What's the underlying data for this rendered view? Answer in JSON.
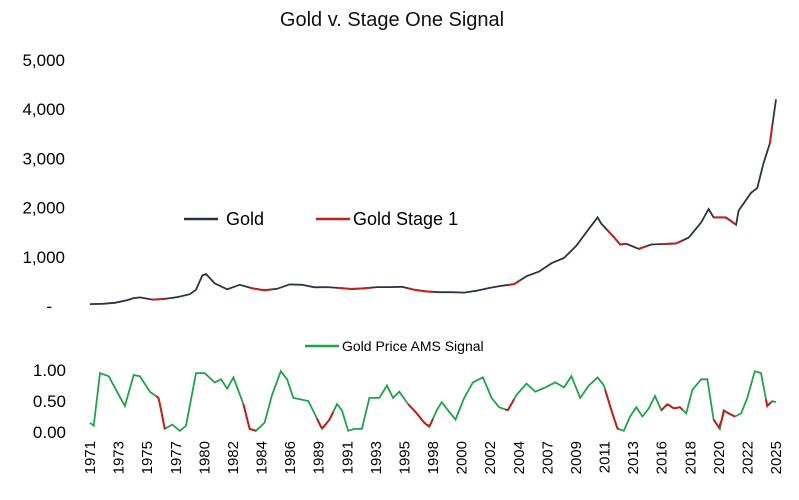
{
  "chart_data": [
    {
      "type": "line",
      "title": "Gold v. Stage One Signal",
      "ylim": [
        0,
        5000
      ],
      "y_ticks": [
        {
          "value": 0,
          "label": "-"
        },
        {
          "value": 1000,
          "label": "1,000"
        },
        {
          "value": 2000,
          "label": "2,000"
        },
        {
          "value": 3000,
          "label": "3,000"
        },
        {
          "value": 4000,
          "label": "4,000"
        },
        {
          "value": 5000,
          "label": "5,000"
        }
      ],
      "legend_position": "center-left",
      "series": [
        {
          "name": "Gold",
          "color": "#2b3442",
          "points": [
            [
              1971.0,
              38
            ],
            [
              1972.0,
              45
            ],
            [
              1973.0,
              65
            ],
            [
              1974.0,
              120
            ],
            [
              1974.5,
              160
            ],
            [
              1975.0,
              175
            ],
            [
              1976.0,
              130
            ],
            [
              1977.0,
              145
            ],
            [
              1978.0,
              180
            ],
            [
              1979.0,
              240
            ],
            [
              1979.5,
              330
            ],
            [
              1980.0,
              620
            ],
            [
              1980.3,
              650
            ],
            [
              1981.0,
              460
            ],
            [
              1982.0,
              340
            ],
            [
              1983.0,
              430
            ],
            [
              1984.0,
              360
            ],
            [
              1985.0,
              320
            ],
            [
              1986.0,
              350
            ],
            [
              1987.0,
              440
            ],
            [
              1988.0,
              430
            ],
            [
              1989.0,
              380
            ],
            [
              1990.0,
              385
            ],
            [
              1991.0,
              365
            ],
            [
              1992.0,
              345
            ],
            [
              1993.0,
              360
            ],
            [
              1994.0,
              385
            ],
            [
              1995.0,
              385
            ],
            [
              1996.0,
              390
            ],
            [
              1997.0,
              330
            ],
            [
              1998.0,
              295
            ],
            [
              1999.0,
              280
            ],
            [
              2000.0,
              280
            ],
            [
              2001.0,
              272
            ],
            [
              2002.0,
              310
            ],
            [
              2003.0,
              365
            ],
            [
              2004.0,
              410
            ],
            [
              2005.0,
              445
            ],
            [
              2006.0,
              605
            ],
            [
              2007.0,
              700
            ],
            [
              2008.0,
              870
            ],
            [
              2009.0,
              975
            ],
            [
              2010.0,
              1225
            ],
            [
              2011.0,
              1570
            ],
            [
              2011.7,
              1800
            ],
            [
              2012.0,
              1670
            ],
            [
              2013.0,
              1400
            ],
            [
              2013.5,
              1250
            ],
            [
              2014.0,
              1265
            ],
            [
              2015.0,
              1160
            ],
            [
              2016.0,
              1250
            ],
            [
              2017.0,
              1260
            ],
            [
              2018.0,
              1270
            ],
            [
              2019.0,
              1390
            ],
            [
              2020.0,
              1700
            ],
            [
              2020.6,
              1970
            ],
            [
              2021.0,
              1800
            ],
            [
              2022.0,
              1800
            ],
            [
              2022.8,
              1650
            ],
            [
              2023.0,
              1940
            ],
            [
              2024.0,
              2300
            ],
            [
              2024.5,
              2400
            ],
            [
              2025.0,
              2900
            ],
            [
              2025.5,
              3300
            ],
            [
              2026.0,
              4200
            ]
          ]
        },
        {
          "name": "Gold Stage 1",
          "color": "#c0201e",
          "segments": [
            [
              [
                1976.0,
                130
              ],
              [
                1977.0,
                145
              ]
            ],
            [
              [
                1983.8,
                370
              ],
              [
                1985.5,
                325
              ]
            ],
            [
              [
                1990.8,
                368
              ],
              [
                1993.5,
                360
              ]
            ],
            [
              [
                1996.5,
                370
              ],
              [
                1998.5,
                290
              ]
            ],
            [
              [
                2004.5,
                415
              ],
              [
                2005.5,
                460
              ]
            ],
            [
              [
                2012.5,
                1620
              ],
              [
                2014.0,
                1265
              ]
            ],
            [
              [
                2015.0,
                1160
              ],
              [
                2015.6,
                1120
              ]
            ],
            [
              [
                2016.8,
                1220
              ],
              [
                2018.5,
                1240
              ]
            ],
            [
              [
                2021.0,
                1800
              ],
              [
                2022.8,
                1650
              ]
            ],
            [
              [
                2025.5,
                3300
              ],
              [
                2025.7,
                3350
              ]
            ]
          ]
        }
      ]
    },
    {
      "type": "line",
      "title": "",
      "ylim": [
        0,
        1.0
      ],
      "y_ticks": [
        {
          "value": 0,
          "label": "0.00"
        },
        {
          "value": 0.5,
          "label": "0.50"
        },
        {
          "value": 1.0,
          "label": "1.00"
        }
      ],
      "legend_position": "top-center",
      "x_ticks": [
        "1971",
        "1973",
        "1975",
        "1977",
        "1980",
        "1982",
        "1984",
        "1986",
        "1989",
        "1991",
        "1993",
        "1995",
        "1998",
        "2000",
        "2002",
        "2004",
        "2007",
        "2009",
        "2011",
        "2013",
        "2016",
        "2018",
        "2020",
        "2022",
        "2025"
      ],
      "series": [
        {
          "name": "Gold Price AMS Signal",
          "color": "#1fa24a",
          "points": [
            [
              1971.0,
              0.15
            ],
            [
              1971.3,
              0.1
            ],
            [
              1971.8,
              0.95
            ],
            [
              1972.5,
              0.9
            ],
            [
              1973.3,
              0.6
            ],
            [
              1973.8,
              0.42
            ],
            [
              1974.5,
              0.92
            ],
            [
              1975.0,
              0.9
            ],
            [
              1975.8,
              0.65
            ],
            [
              1976.5,
              0.55
            ],
            [
              1977.0,
              0.05
            ],
            [
              1977.6,
              0.12
            ],
            [
              1978.2,
              0.02
            ],
            [
              1978.7,
              0.1
            ],
            [
              1979.5,
              0.95
            ],
            [
              1980.2,
              0.95
            ],
            [
              1981.0,
              0.8
            ],
            [
              1981.5,
              0.85
            ],
            [
              1982.0,
              0.7
            ],
            [
              1982.5,
              0.88
            ],
            [
              1983.3,
              0.45
            ],
            [
              1983.8,
              0.05
            ],
            [
              1984.3,
              0.02
            ],
            [
              1985.0,
              0.15
            ],
            [
              1985.6,
              0.6
            ],
            [
              1986.3,
              0.98
            ],
            [
              1986.8,
              0.85
            ],
            [
              1987.3,
              0.55
            ],
            [
              1988.5,
              0.5
            ],
            [
              1989.0,
              0.3
            ],
            [
              1989.6,
              0.05
            ],
            [
              1990.2,
              0.2
            ],
            [
              1990.8,
              0.45
            ],
            [
              1991.2,
              0.35
            ],
            [
              1991.7,
              0.02
            ],
            [
              1992.2,
              0.05
            ],
            [
              1992.8,
              0.05
            ],
            [
              1993.4,
              0.55
            ],
            [
              1994.2,
              0.55
            ],
            [
              1994.8,
              0.75
            ],
            [
              1995.3,
              0.55
            ],
            [
              1995.8,
              0.65
            ],
            [
              1996.5,
              0.45
            ],
            [
              1997.2,
              0.3
            ],
            [
              1997.8,
              0.15
            ],
            [
              1998.2,
              0.08
            ],
            [
              1998.8,
              0.35
            ],
            [
              1999.2,
              0.48
            ],
            [
              1999.7,
              0.35
            ],
            [
              2000.3,
              0.2
            ],
            [
              2001.0,
              0.55
            ],
            [
              2001.7,
              0.8
            ],
            [
              2002.5,
              0.88
            ],
            [
              2003.2,
              0.55
            ],
            [
              2003.8,
              0.4
            ],
            [
              2004.5,
              0.35
            ],
            [
              2005.2,
              0.6
            ],
            [
              2006.0,
              0.78
            ],
            [
              2006.7,
              0.65
            ],
            [
              2007.5,
              0.72
            ],
            [
              2008.3,
              0.8
            ],
            [
              2009.0,
              0.72
            ],
            [
              2009.6,
              0.9
            ],
            [
              2010.3,
              0.55
            ],
            [
              2011.0,
              0.75
            ],
            [
              2011.7,
              0.88
            ],
            [
              2012.2,
              0.75
            ],
            [
              2012.8,
              0.35
            ],
            [
              2013.3,
              0.05
            ],
            [
              2013.8,
              0.02
            ],
            [
              2014.3,
              0.25
            ],
            [
              2014.8,
              0.4
            ],
            [
              2015.3,
              0.25
            ],
            [
              2015.8,
              0.38
            ],
            [
              2016.3,
              0.58
            ],
            [
              2016.8,
              0.35
            ],
            [
              2017.3,
              0.45
            ],
            [
              2017.8,
              0.38
            ],
            [
              2018.3,
              0.4
            ],
            [
              2018.8,
              0.3
            ],
            [
              2019.3,
              0.68
            ],
            [
              2020.0,
              0.85
            ],
            [
              2020.5,
              0.85
            ],
            [
              2021.0,
              0.2
            ],
            [
              2021.5,
              0.05
            ],
            [
              2021.8,
              0.35
            ],
            [
              2022.2,
              0.3
            ],
            [
              2022.7,
              0.25
            ],
            [
              2023.2,
              0.3
            ],
            [
              2023.7,
              0.55
            ],
            [
              2024.3,
              0.98
            ],
            [
              2024.8,
              0.95
            ],
            [
              2025.3,
              0.42
            ],
            [
              2025.7,
              0.5
            ],
            [
              2026.0,
              0.48
            ]
          ],
          "red_segments": [
            [
              1976.3,
              1977.0
            ],
            [
              1983.3,
              1984.3
            ],
            [
              1989.2,
              1990.5
            ],
            [
              1996.5,
              1998.5
            ],
            [
              2004.3,
              2005.0
            ],
            [
              2012.3,
              2013.4
            ],
            [
              2016.8,
              2018.5
            ],
            [
              2021.0,
              2022.7
            ],
            [
              2025.2,
              2025.6
            ]
          ]
        }
      ]
    }
  ]
}
